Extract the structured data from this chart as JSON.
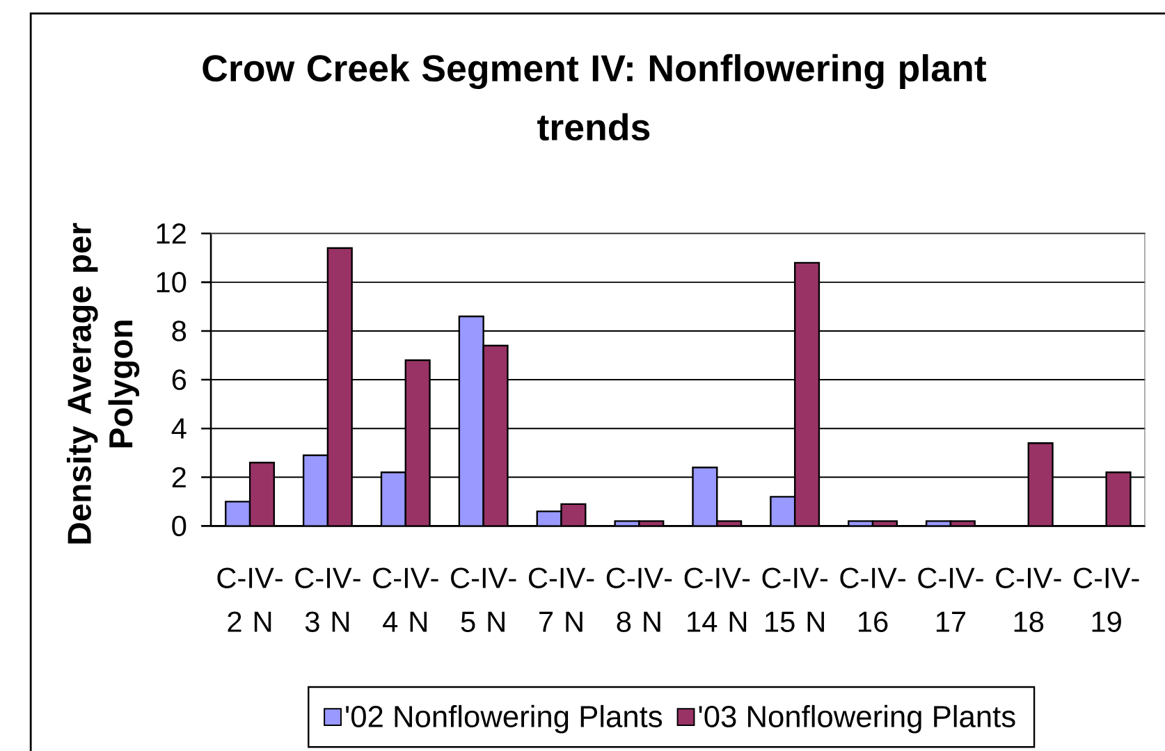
{
  "chart_data": {
    "type": "bar",
    "title": "Crow Creek Segment IV: Nonflowering plant trends",
    "ylabel": "Density Average per Polygon",
    "categories": [
      "C-IV-2 N",
      "C-IV-3 N",
      "C-IV-4 N",
      "C-IV-5 N",
      "C-IV-7 N",
      "C-IV-8 N",
      "C-IV-14 N",
      "C-IV-15 N",
      "C-IV-16",
      "C-IV-17",
      "C-IV-18",
      "C-IV-19"
    ],
    "series": [
      {
        "name": "'02 Nonflowering Plants",
        "color": "#9999ff",
        "values": [
          1.0,
          2.9,
          2.2,
          8.6,
          0.6,
          0.2,
          2.4,
          1.2,
          0.2,
          0.2,
          null,
          null
        ]
      },
      {
        "name": "'03 Nonflowering Plants",
        "color": "#993366",
        "values": [
          2.6,
          11.4,
          6.8,
          7.4,
          0.9,
          0.2,
          0.2,
          10.8,
          0.2,
          0.2,
          3.4,
          2.2
        ]
      }
    ],
    "ylim": [
      0,
      12
    ],
    "yticks": [
      0,
      2,
      4,
      6,
      8,
      10,
      12
    ],
    "grid": "y",
    "legend": "bottom"
  }
}
